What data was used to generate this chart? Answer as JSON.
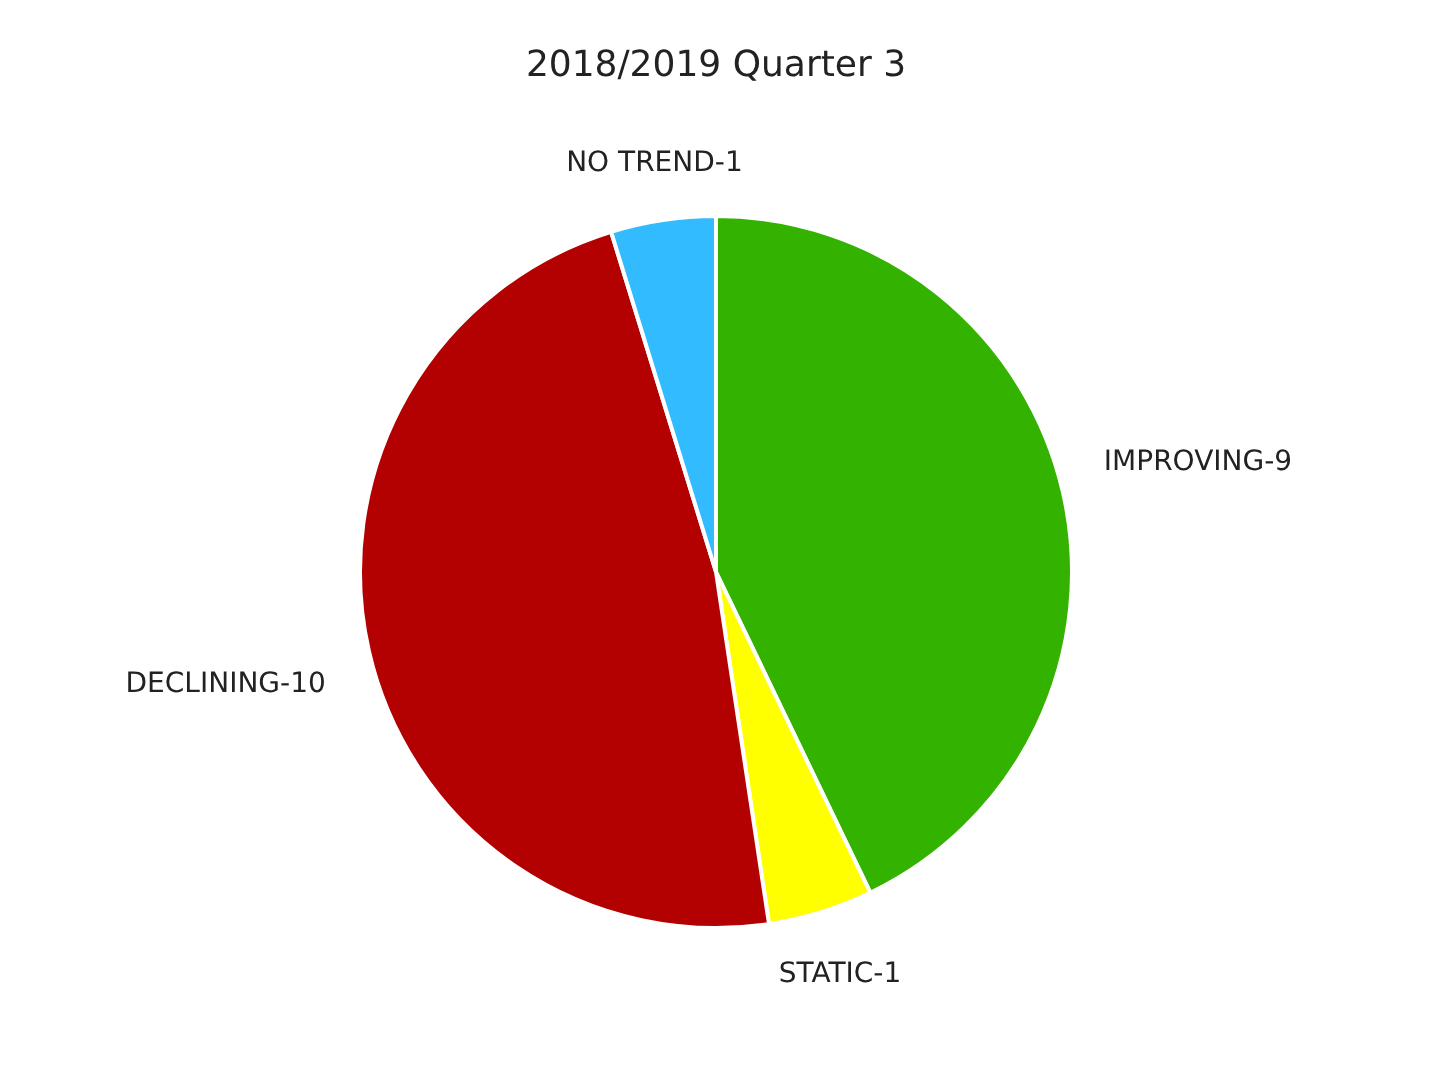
{
  "chart_data": {
    "type": "pie",
    "title": "2018/2019 Quarter 3",
    "categories": [
      "IMPROVING-9",
      "STATIC-1",
      "DECLINING-10",
      "NO TREND-1"
    ],
    "values": [
      42.86,
      4.76,
      47.62,
      4.76
    ],
    "colors": [
      "#33b300",
      "#ffff00",
      "#b30000",
      "#33bbff"
    ],
    "legend": false
  }
}
